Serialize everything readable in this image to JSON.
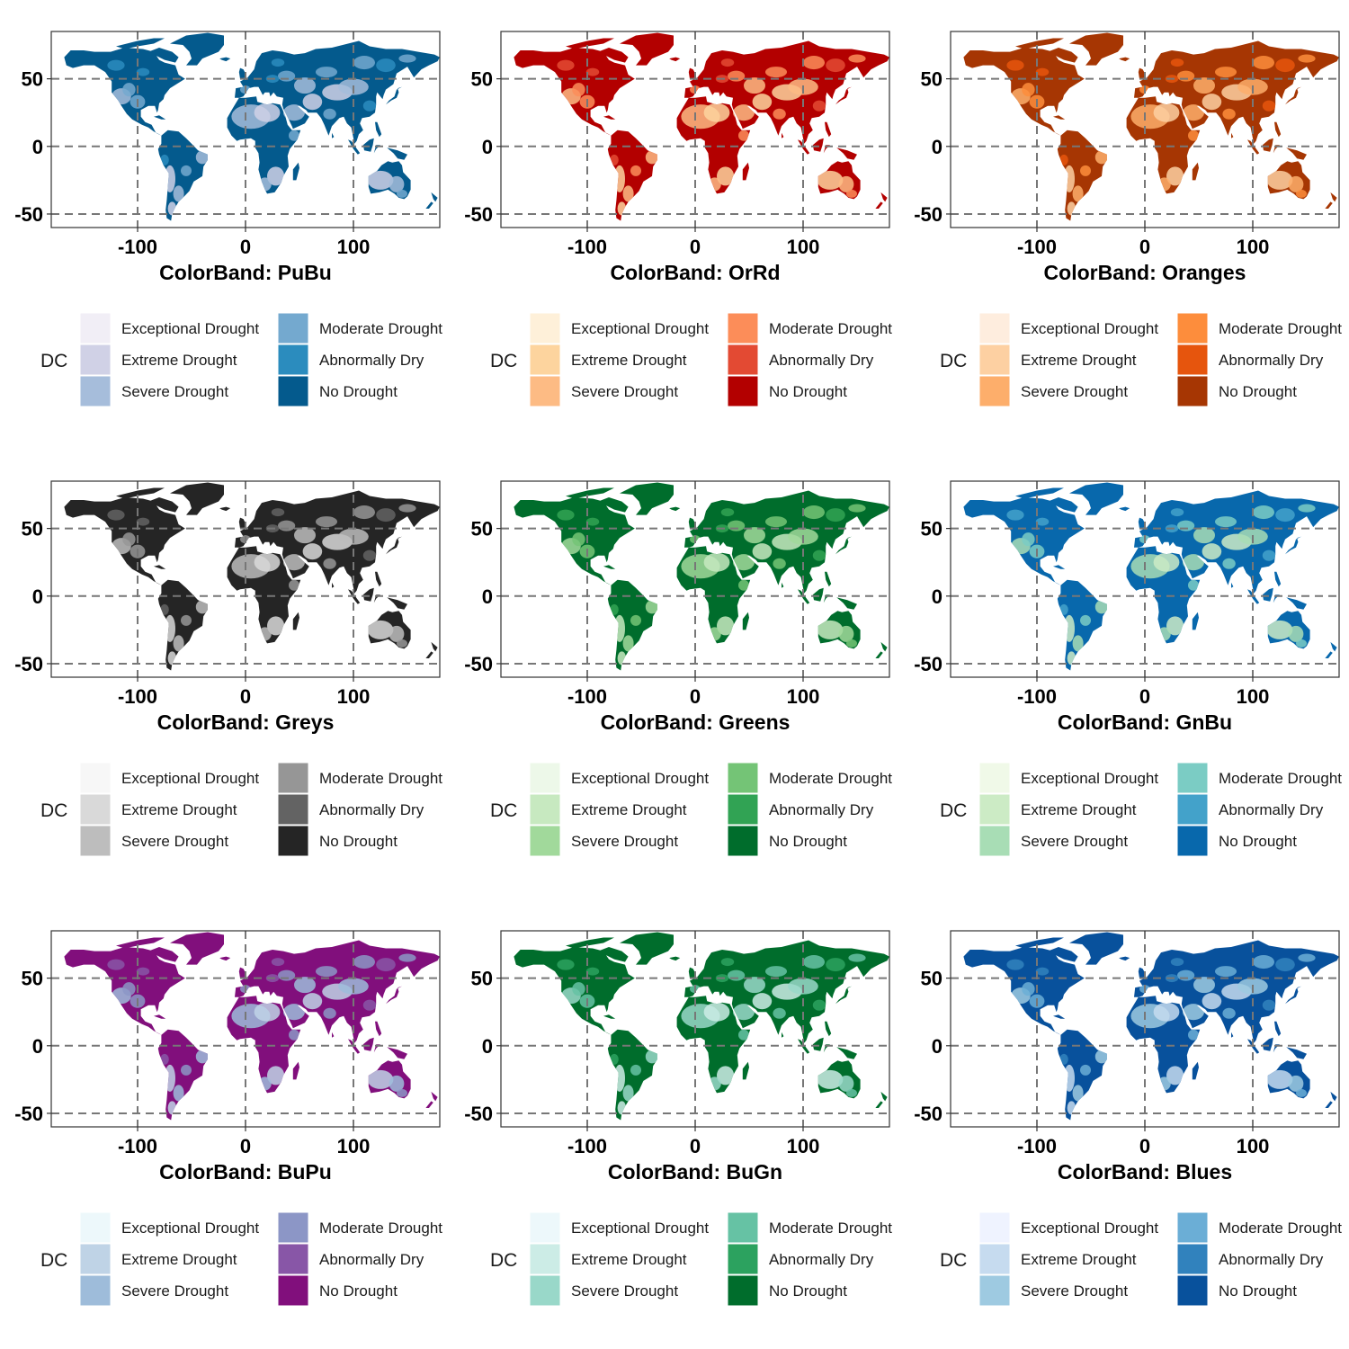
{
  "figure": {
    "legend_title": "DC",
    "title_prefix": "ColorBand: ",
    "classes": [
      "Exceptional Drought",
      "Extreme Drought",
      "Severe Drought",
      "Moderate Drought",
      "Abnormally Dry",
      "No Drought"
    ],
    "x_ticks": [
      -100,
      0,
      100
    ],
    "y_ticks": [
      50,
      0,
      -50
    ],
    "xlim": [
      -180,
      180
    ],
    "ylim": [
      -60,
      85
    ]
  },
  "chart_data": [
    {
      "type": "heatmap",
      "band": "PuBu",
      "colors": [
        "#f1eef6",
        "#d0d1e6",
        "#a6bddb",
        "#74a9cf",
        "#2b8cbe",
        "#045a8d"
      ]
    },
    {
      "type": "heatmap",
      "band": "OrRd",
      "colors": [
        "#fef0d9",
        "#fdd49e",
        "#fdbb84",
        "#fc8d59",
        "#e34a33",
        "#b30000"
      ]
    },
    {
      "type": "heatmap",
      "band": "Oranges",
      "colors": [
        "#feedde",
        "#fdd0a2",
        "#fdae6b",
        "#fd8d3c",
        "#e6550d",
        "#a63603"
      ]
    },
    {
      "type": "heatmap",
      "band": "Greys",
      "colors": [
        "#f7f7f7",
        "#d9d9d9",
        "#bdbdbd",
        "#969696",
        "#636363",
        "#252525"
      ]
    },
    {
      "type": "heatmap",
      "band": "Greens",
      "colors": [
        "#edf8e9",
        "#c7e9c0",
        "#a1d99b",
        "#74c476",
        "#31a354",
        "#006d2c"
      ]
    },
    {
      "type": "heatmap",
      "band": "GnBu",
      "colors": [
        "#f0f9e8",
        "#ccebc5",
        "#a8ddb5",
        "#7bccc4",
        "#43a2ca",
        "#0868ac"
      ]
    },
    {
      "type": "heatmap",
      "band": "BuPu",
      "colors": [
        "#edf8fb",
        "#bfd3e6",
        "#9ebcda",
        "#8c96c6",
        "#8856a7",
        "#810f7c"
      ]
    },
    {
      "type": "heatmap",
      "band": "BuGn",
      "colors": [
        "#edf8fb",
        "#ccece6",
        "#99d8c9",
        "#66c2a4",
        "#2ca25f",
        "#006d2c"
      ]
    },
    {
      "type": "heatmap",
      "band": "Blues",
      "colors": [
        "#eff3ff",
        "#c6dbef",
        "#9ecae1",
        "#6baed6",
        "#3182bd",
        "#08519c"
      ]
    }
  ]
}
